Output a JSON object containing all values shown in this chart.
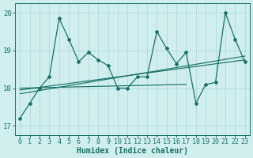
{
  "xlabel": "Humidex (Indice chaleur)",
  "bg_color": "#d0eeee",
  "line_color": "#1a7068",
  "grid_color": "#a8d8d8",
  "xlim": [
    -0.5,
    23.5
  ],
  "ylim": [
    16.75,
    20.25
  ],
  "yticks": [
    17,
    18,
    19,
    20
  ],
  "xticks": [
    0,
    1,
    2,
    3,
    4,
    5,
    6,
    7,
    8,
    9,
    10,
    11,
    12,
    13,
    14,
    15,
    16,
    17,
    18,
    19,
    20,
    21,
    22,
    23
  ],
  "main_x": [
    0,
    1,
    2,
    3,
    4,
    5,
    6,
    7,
    8,
    9,
    10,
    11,
    12,
    13,
    14,
    15,
    16,
    17,
    18,
    19,
    20,
    21,
    22,
    23
  ],
  "main_y": [
    17.2,
    17.6,
    18.0,
    18.3,
    19.85,
    19.3,
    18.7,
    18.95,
    18.75,
    18.6,
    18.0,
    18.0,
    18.3,
    18.3,
    19.5,
    19.05,
    18.65,
    18.95,
    17.6,
    18.1,
    18.15,
    20.0,
    19.3,
    18.7
  ],
  "trend_lines": [
    {
      "x": [
        0,
        23
      ],
      "y": [
        17.85,
        18.85
      ]
    },
    {
      "x": [
        0,
        23
      ],
      "y": [
        17.95,
        18.75
      ]
    },
    {
      "x": [
        0,
        17
      ],
      "y": [
        18.0,
        18.1
      ]
    }
  ],
  "xlabel_fontsize": 7,
  "tick_fontsize": 6
}
